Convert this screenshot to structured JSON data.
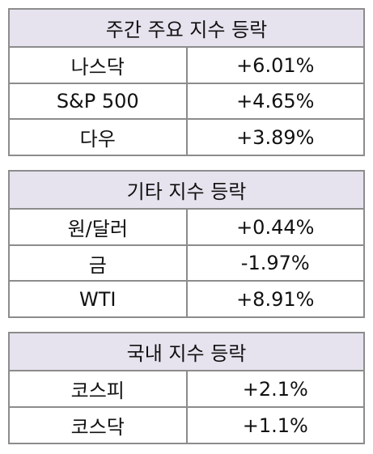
{
  "tables": [
    {
      "title": "주간 주요 지수 등락",
      "rows": [
        {
          "name": "나스닥",
          "change": "+6.01%",
          "direction": "up"
        },
        {
          "name": "S&P 500",
          "change": "+4.65%",
          "direction": "up"
        },
        {
          "name": "다우",
          "change": "+3.89%",
          "direction": "up"
        }
      ]
    },
    {
      "title": "기타 지수 등락",
      "rows": [
        {
          "name": "원/달러",
          "change": "+0.44%",
          "direction": "up"
        },
        {
          "name": "금",
          "change": "-1.97%",
          "direction": "down"
        },
        {
          "name": "WTI",
          "change": "+8.91%",
          "direction": "up"
        }
      ]
    },
    {
      "title": "국내 지수 등락",
      "rows": [
        {
          "name": "코스피",
          "change": "+2.1%",
          "direction": "up"
        },
        {
          "name": "코스닥",
          "change": "+1.1%",
          "direction": "up"
        }
      ]
    }
  ],
  "colors": {
    "up": "#c00000",
    "down": "#3a6fbf",
    "header_bg": "#e6e3ee",
    "border": "#8c8c8c"
  }
}
